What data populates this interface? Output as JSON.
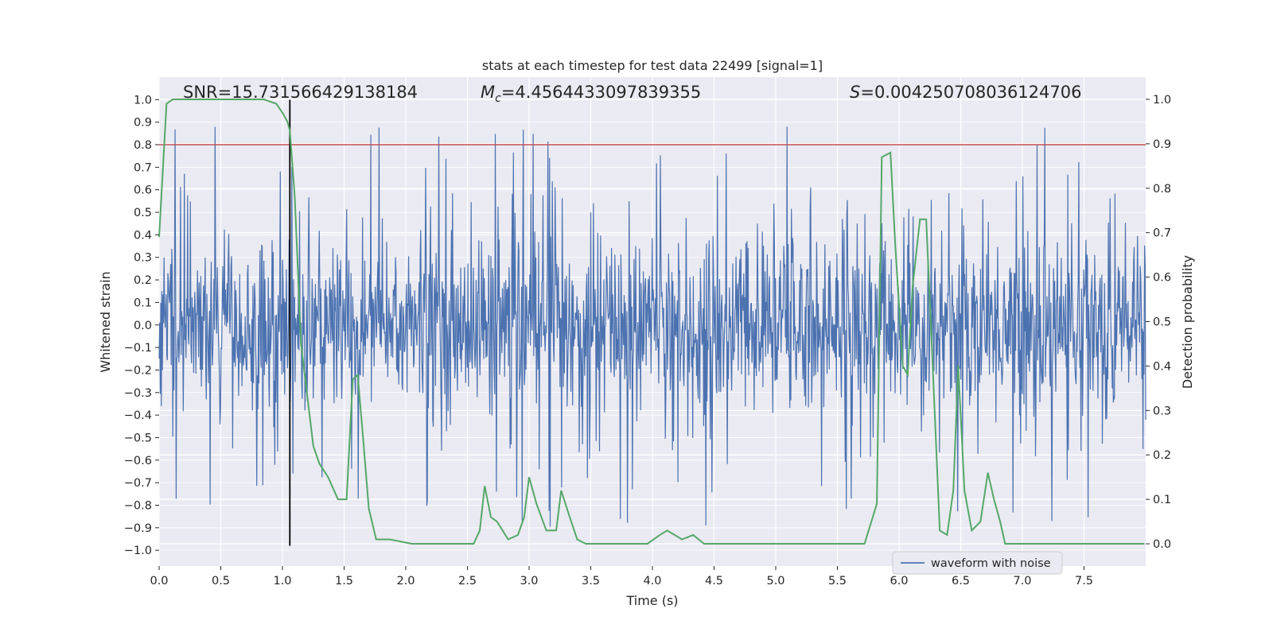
{
  "chart_data": {
    "type": "line",
    "title": "stats at each timestep for test data 22499 [signal=1]",
    "xlabel": "Time (s)",
    "ylabel_left": "Whitened strain",
    "ylabel_right": "Detection probability",
    "xlim": [
      0,
      8.0
    ],
    "ylim_left": [
      -1.07,
      1.1
    ],
    "ylim_right": [
      -0.05,
      1.05
    ],
    "grid": true,
    "x_ticks": [
      0.0,
      0.5,
      1.0,
      1.5,
      2.0,
      2.5,
      3.0,
      3.5,
      4.0,
      4.5,
      5.0,
      5.5,
      6.0,
      6.5,
      7.0,
      7.5
    ],
    "x_tick_labels": [
      "0.0",
      "0.5",
      "1.0",
      "1.5",
      "2.0",
      "2.5",
      "3.0",
      "3.5",
      "4.0",
      "4.5",
      "5.0",
      "5.5",
      "6.0",
      "6.5",
      "7.0",
      "7.5"
    ],
    "y_left_ticks": [
      -1.0,
      -0.9,
      -0.8,
      -0.7,
      -0.6,
      -0.5,
      -0.4,
      -0.3,
      -0.2,
      -0.1,
      0.0,
      0.1,
      0.2,
      0.3,
      0.4,
      0.5,
      0.6,
      0.7,
      0.8,
      0.9,
      1.0
    ],
    "y_left_tick_labels": [
      "−1.0",
      "−0.9",
      "−0.8",
      "−0.7",
      "−0.6",
      "−0.5",
      "−0.4",
      "−0.3",
      "−0.2",
      "−0.1",
      "0.0",
      "0.1",
      "0.2",
      "0.3",
      "0.4",
      "0.5",
      "0.6",
      "0.7",
      "0.8",
      "0.9",
      "1.0"
    ],
    "y_right_ticks": [
      0.0,
      0.1,
      0.2,
      0.3,
      0.4,
      0.5,
      0.6,
      0.7,
      0.8,
      0.9,
      1.0
    ],
    "y_right_tick_labels": [
      "0.0",
      "0.1",
      "0.2",
      "0.3",
      "0.4",
      "0.5",
      "0.6",
      "0.7",
      "0.8",
      "0.9",
      "1.0"
    ],
    "annotations": {
      "snr_label": "SNR=15.731566429138184",
      "mc_symbol": "M",
      "mc_subscript": "c",
      "mc_value": "=4.4564433097839355",
      "s_symbol": "S",
      "s_value": "=0.004250708036124706"
    },
    "legend": {
      "position": "lower-center-right",
      "entries": [
        "waveform with noise"
      ]
    },
    "threshold_line": {
      "axis": "left",
      "y": 0.8,
      "color": "#c44e52"
    },
    "event_marker": {
      "x": 1.06,
      "y_range": [
        -0.98,
        1.0
      ],
      "color": "#000000"
    },
    "waveform": {
      "name": "waveform with noise",
      "color": "#4c72b0",
      "axis": "left",
      "duration_s": 8.0,
      "samples": 1800,
      "envelope_core": 0.32,
      "peak_max": 1.0,
      "trough_min": -0.98
    },
    "detection_probability": {
      "name": "detection probability",
      "color": "#55a868",
      "axis": "right",
      "x": [
        0.0,
        0.06,
        0.11,
        0.2,
        0.3,
        0.5,
        0.7,
        0.85,
        0.95,
        1.0,
        1.04,
        1.06,
        1.1,
        1.15,
        1.25,
        1.3,
        1.37,
        1.45,
        1.52,
        1.57,
        1.61,
        1.65,
        1.7,
        1.76,
        1.87,
        2.05,
        2.25,
        2.4,
        2.55,
        2.6,
        2.64,
        2.69,
        2.74,
        2.83,
        2.91,
        2.96,
        3.0,
        3.06,
        3.14,
        3.22,
        3.26,
        3.33,
        3.39,
        3.46,
        3.6,
        3.8,
        3.96,
        4.06,
        4.12,
        4.18,
        4.24,
        4.33,
        4.42,
        4.6,
        4.9,
        5.2,
        5.5,
        5.72,
        5.82,
        5.86,
        5.93,
        5.97,
        6.03,
        6.07,
        6.11,
        6.17,
        6.22,
        6.27,
        6.33,
        6.39,
        6.44,
        6.48,
        6.53,
        6.59,
        6.66,
        6.72,
        6.77,
        6.82,
        6.86,
        6.92,
        7.1,
        7.3,
        7.6,
        7.99
      ],
      "y": [
        0.69,
        0.99,
        1.0,
        1.0,
        1.0,
        1.0,
        1.0,
        1.0,
        0.99,
        0.97,
        0.95,
        0.93,
        0.78,
        0.45,
        0.22,
        0.18,
        0.15,
        0.1,
        0.1,
        0.37,
        0.38,
        0.25,
        0.08,
        0.01,
        0.01,
        0.0,
        0.0,
        0.0,
        0.0,
        0.03,
        0.13,
        0.06,
        0.05,
        0.01,
        0.02,
        0.06,
        0.15,
        0.09,
        0.03,
        0.03,
        0.12,
        0.06,
        0.01,
        0.0,
        0.0,
        0.0,
        0.0,
        0.02,
        0.03,
        0.02,
        0.01,
        0.02,
        0.0,
        0.0,
        0.0,
        0.0,
        0.0,
        0.0,
        0.09,
        0.87,
        0.88,
        0.67,
        0.4,
        0.38,
        0.58,
        0.73,
        0.73,
        0.42,
        0.03,
        0.02,
        0.12,
        0.4,
        0.12,
        0.03,
        0.05,
        0.16,
        0.1,
        0.05,
        0.0,
        0.0,
        0.0,
        0.0,
        0.0,
        0.0
      ]
    }
  }
}
